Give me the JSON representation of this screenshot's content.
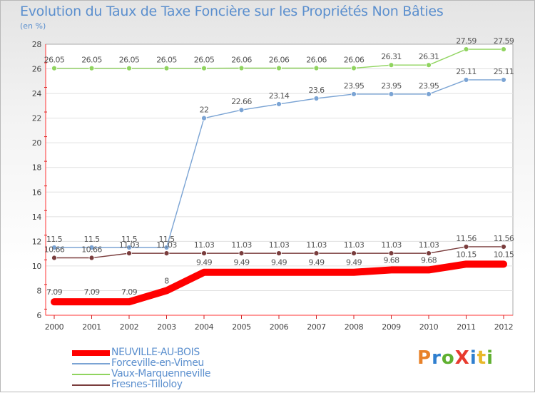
{
  "title": "Evolution du Taux de Taxe Foncière sur les Propriétés Non Bâties",
  "unit_label": "(en %)",
  "logo": {
    "text": "ProXiti"
  },
  "chart_data": {
    "type": "line",
    "title": "Evolution du Taux de Taxe Foncière sur les Propriétés Non Bâties",
    "ylabel": "(en %)",
    "xlabel": "",
    "x": [
      2000,
      2001,
      2002,
      2003,
      2004,
      2005,
      2006,
      2007,
      2008,
      2009,
      2010,
      2011,
      2012
    ],
    "ylim": [
      6,
      28
    ],
    "yticks": [
      6,
      8,
      10,
      12,
      14,
      16,
      18,
      20,
      22,
      24,
      26,
      28
    ],
    "series": [
      {
        "name": "Vaux-Marquenneville",
        "color": "#90d45f",
        "values": [
          26.05,
          26.05,
          26.05,
          26.05,
          26.05,
          26.06,
          26.06,
          26.06,
          26.06,
          26.31,
          26.31,
          27.59,
          27.59
        ],
        "labels": [
          "26.05",
          "26.05",
          "26.05",
          "26.05",
          "26.05",
          "26.06",
          "26.06",
          "26.06",
          "26.06",
          "26.31",
          "26.31",
          "27.59",
          "27.59"
        ]
      },
      {
        "name": "Forceville-en-Vimeu",
        "color": "#7ba4d4",
        "values": [
          11.5,
          11.5,
          11.5,
          11.5,
          22,
          22.66,
          23.14,
          23.6,
          23.95,
          23.95,
          23.95,
          25.11,
          25.11
        ],
        "labels": [
          "11.5",
          "11.5",
          "11.5",
          "11.5",
          "22",
          "22.66",
          "23.14",
          "23.6",
          "23.95",
          "23.95",
          "23.95",
          "25.11",
          "25.11"
        ]
      },
      {
        "name": "Fresnes-Tilloloy",
        "color": "#7a3d3d",
        "values": [
          10.66,
          10.66,
          11.03,
          11.03,
          11.03,
          11.03,
          11.03,
          11.03,
          11.03,
          11.03,
          11.03,
          11.56,
          11.56
        ],
        "labels": [
          "10.66",
          "10.66",
          "11.03",
          "11.03",
          "11.03",
          "11.03",
          "11.03",
          "11.03",
          "11.03",
          "11.03",
          "11.03",
          "11.56",
          "11.56"
        ]
      },
      {
        "name": "NEUVILLE-AU-BOIS",
        "color": "#ff0000",
        "values": [
          7.09,
          7.09,
          7.09,
          8,
          9.49,
          9.49,
          9.49,
          9.49,
          9.49,
          9.68,
          9.68,
          10.15,
          10.15
        ],
        "labels": [
          "7.09",
          "7.09",
          "7.09",
          "8",
          "9.49",
          "9.49",
          "9.49",
          "9.49",
          "9.49",
          "9.68",
          "9.68",
          "10.15",
          "10.15"
        ]
      }
    ],
    "legend": {
      "placement": "bottom-left",
      "order": [
        "NEUVILLE-AU-BOIS",
        "Forceville-en-Vimeu",
        "Vaux-Marquenneville",
        "Fresnes-Tilloloy"
      ]
    }
  }
}
